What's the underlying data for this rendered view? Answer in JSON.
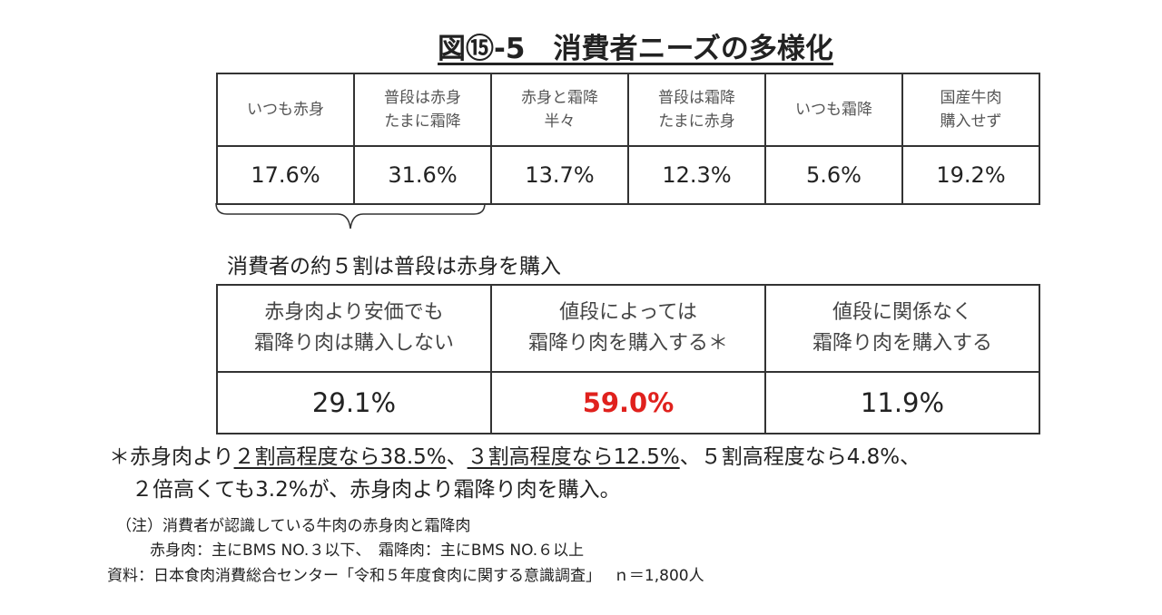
{
  "title": "図⑮-5　消費者ニーズの多様化",
  "table1": {
    "headers": [
      [
        "いつも赤身"
      ],
      [
        "普段は赤身",
        "たまに霜降"
      ],
      [
        "赤身と霜降",
        "半々"
      ],
      [
        "普段は霜降",
        "たまに赤身"
      ],
      [
        "いつも霜降"
      ],
      [
        "国産牛肉",
        "購入せず"
      ]
    ],
    "values": [
      "17.6%",
      "31.6%",
      "13.7%",
      "12.3%",
      "5.6%",
      "19.2%"
    ]
  },
  "caption": "消費者の約５割は普段は赤身を購入",
  "table2": {
    "headers": [
      [
        "赤身肉より安価でも",
        "霜降り肉は購入しない"
      ],
      [
        "値段によっては",
        "霜降り肉を購入する＊"
      ],
      [
        "値段に関係なく",
        "霜降り肉を購入する"
      ]
    ],
    "values": [
      "29.1%",
      "59.0%",
      "11.9%"
    ]
  },
  "footnote": {
    "line1": [
      "＊赤身肉より",
      "２割高程度なら38.5%",
      "、",
      "３割高程度なら12.5%",
      "、５割高程度なら4.8%、"
    ],
    "line2": "２倍高くても3.2%が、赤身肉より霜降り肉を購入。"
  },
  "notes": [
    "（注）消費者が認識している牛肉の赤身肉と霜降肉",
    "赤身肉：主にBMS NO.３以下、　霜降肉：主にBMS NO.６以上",
    "資料：日本食肉消費総合センター「令和５年度食肉に関する意識調査」　 ｎ＝1,800人"
  ]
}
